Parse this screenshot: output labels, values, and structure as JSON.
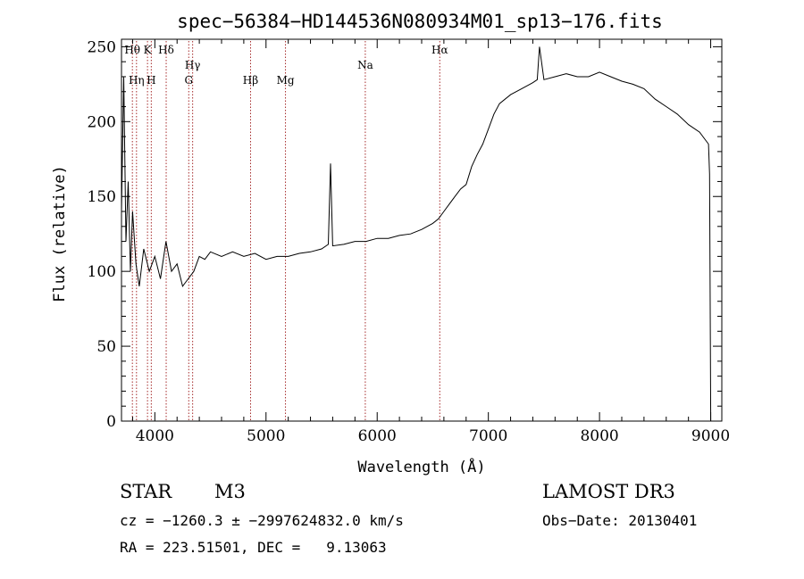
{
  "chart_data": {
    "type": "line",
    "title": "spec−56384−HD144536N080934M01_sp13−176.fits",
    "xlabel": "Wavelength (Å)",
    "ylabel": "Flux (relative)",
    "xlim": [
      3700,
      9100
    ],
    "ylim": [
      0,
      255
    ],
    "xticks": [
      4000,
      5000,
      6000,
      7000,
      8000,
      9000
    ],
    "yticks": [
      0,
      50,
      100,
      150,
      200,
      250
    ],
    "xtick_labels": [
      "4000",
      "5000",
      "6000",
      "7000",
      "8000",
      "9000"
    ],
    "ytick_labels": [
      "0",
      "50",
      "100",
      "150",
      "200",
      "250"
    ],
    "grid": false,
    "colors": {
      "spectrum": "#000000",
      "lines": "#a52a2a",
      "axes": "#000000"
    },
    "series": [
      {
        "x": [
          3700,
          3720,
          3740,
          3760,
          3780,
          3800,
          3830,
          3860,
          3900,
          3950,
          4000,
          4050,
          4100,
          4150,
          4200,
          4250,
          4300,
          4350,
          4400,
          4450,
          4500,
          4600,
          4700,
          4800,
          4900,
          5000,
          5100,
          5200,
          5300,
          5400,
          5500,
          5560,
          5580,
          5600,
          5700,
          5800,
          5900,
          6000,
          6100,
          6200,
          6300,
          6400,
          6500,
          6550,
          6600,
          6650,
          6700,
          6750,
          6800,
          6850,
          6900,
          6950,
          7000,
          7050,
          7100,
          7200,
          7300,
          7400,
          7440,
          7460,
          7500,
          7600,
          7700,
          7800,
          7900,
          8000,
          8100,
          8200,
          8300,
          8400,
          8500,
          8600,
          8700,
          8800,
          8900,
          8980,
          8990,
          9000
        ],
        "y": [
          140,
          230,
          120,
          160,
          100,
          140,
          105,
          90,
          115,
          100,
          110,
          95,
          120,
          100,
          105,
          90,
          95,
          100,
          110,
          108,
          113,
          110,
          113,
          110,
          112,
          108,
          110,
          110,
          112,
          113,
          115,
          118,
          172,
          117,
          118,
          120,
          120,
          122,
          122,
          124,
          125,
          128,
          132,
          135,
          140,
          145,
          150,
          155,
          158,
          170,
          178,
          185,
          195,
          205,
          212,
          218,
          222,
          226,
          228,
          250,
          228,
          230,
          232,
          230,
          230,
          233,
          230,
          227,
          225,
          222,
          215,
          210,
          205,
          198,
          193,
          185,
          165,
          0
        ]
      }
    ],
    "line_markers": [
      {
        "label": "Hθ",
        "x": 3798,
        "row": 1
      },
      {
        "label": "Hη",
        "x": 3835,
        "row": 3
      },
      {
        "label": "K",
        "x": 3934,
        "row": 1
      },
      {
        "label": "H",
        "x": 3968,
        "row": 3
      },
      {
        "label": "Hδ",
        "x": 4102,
        "row": 1
      },
      {
        "label": "G",
        "x": 4305,
        "row": 3
      },
      {
        "label": "Hγ",
        "x": 4340,
        "row": 2
      },
      {
        "label": "Hβ",
        "x": 4861,
        "row": 3
      },
      {
        "label": "Mg",
        "x": 5175,
        "row": 3
      },
      {
        "label": "Na",
        "x": 5893,
        "row": 2
      },
      {
        "label": "Hα",
        "x": 6563,
        "row": 1
      }
    ]
  },
  "footer": {
    "object_class": "STAR",
    "subclass": "M3",
    "survey": "LAMOST DR3",
    "redshift": "cz = −1260.3 ± −2997624832.0 km/s",
    "obs_date": "Obs−Date: 20130401",
    "coords": "RA = 223.51501, DEC =   9.13063"
  }
}
